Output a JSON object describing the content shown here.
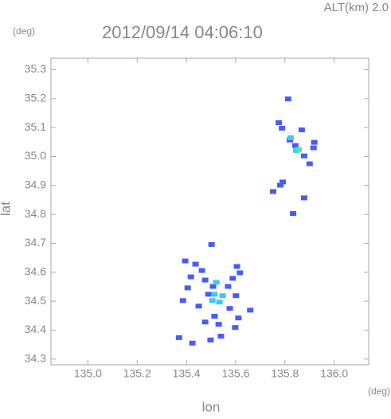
{
  "chart_data": {
    "type": "scatter",
    "title": "2012/09/14 04:06:10",
    "subtitle": "ALT(km) 2.0",
    "y_unit": "(deg)",
    "x_unit": "(deg)",
    "xlabel": "lon",
    "ylabel": "lat",
    "xlim": [
      134.85,
      136.14
    ],
    "ylim": [
      34.28,
      35.34
    ],
    "xticks": [
      {
        "value": 135.0,
        "label": "135.0"
      },
      135.2,
      135.4,
      135.6,
      135.8,
      {
        "value": 136.0,
        "label": "136.0"
      }
    ],
    "yticks": [
      34.3,
      34.4,
      34.5,
      34.6,
      34.7,
      34.8,
      34.9,
      {
        "value": 35.0,
        "label": "35.0"
      },
      35.1,
      35.2,
      35.3
    ],
    "series": [
      {
        "color": "#4a5cf2",
        "x": [
          135.813,
          135.775,
          135.788,
          135.868,
          135.82,
          135.842,
          135.878,
          135.916,
          135.919,
          135.9,
          135.781,
          135.791,
          135.752,
          135.878,
          135.833,
          135.502,
          135.395,
          135.437,
          135.463,
          135.605,
          135.617,
          135.588,
          135.476,
          135.418,
          135.405,
          135.508,
          135.569,
          135.601,
          135.386,
          135.45,
          135.576,
          135.659,
          135.611,
          135.476,
          135.531,
          135.598,
          135.37,
          135.424,
          135.498,
          135.54,
          135.514,
          135.489
        ],
        "y": [
          35.199,
          35.117,
          35.098,
          35.092,
          35.057,
          35.038,
          35.002,
          35.03,
          35.049,
          34.975,
          34.901,
          34.912,
          34.879,
          34.857,
          34.803,
          34.696,
          34.639,
          34.628,
          34.606,
          34.62,
          34.598,
          34.579,
          34.573,
          34.584,
          34.546,
          34.551,
          34.551,
          34.519,
          34.502,
          34.483,
          34.475,
          34.469,
          34.442,
          34.428,
          34.42,
          34.409,
          34.374,
          34.355,
          34.366,
          34.379,
          34.448,
          34.524
        ]
      },
      {
        "color": "#3fc8f0",
        "x": [
          135.823,
          135.846,
          135.521,
          135.514,
          135.547,
          135.534,
          135.505
        ],
        "y": [
          35.065,
          35.021,
          34.565,
          34.524,
          34.519,
          34.497,
          34.502
        ]
      },
      {
        "color": "#40f0a0",
        "x": [
          135.855
        ],
        "y": [
          35.024
        ]
      }
    ]
  }
}
